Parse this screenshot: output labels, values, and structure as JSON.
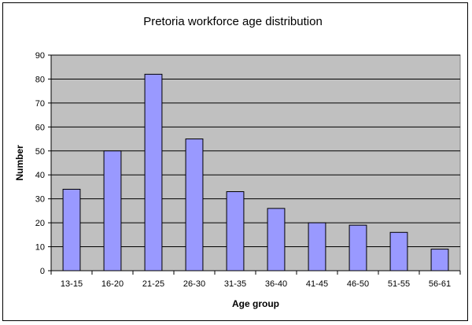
{
  "chart_data": {
    "type": "bar",
    "title": "Pretoria workforce age distribution",
    "xlabel": "Age group",
    "ylabel": "Number",
    "categories": [
      "13-15",
      "16-20",
      "21-25",
      "26-30",
      "31-35",
      "36-40",
      "41-45",
      "46-50",
      "51-55",
      "56-61"
    ],
    "values": [
      34,
      50,
      82,
      55,
      33,
      26,
      20,
      19,
      16,
      9
    ],
    "ylim": [
      0,
      90
    ],
    "yticks": [
      "0",
      "10",
      "20",
      "30",
      "40",
      "50",
      "60",
      "70",
      "80",
      "90"
    ],
    "grid": true,
    "legend": "none",
    "colors": {
      "bar_fill": "#9999ff",
      "bar_stroke": "#000000",
      "plot_background": "#c0c0c0",
      "gridline": "#000000"
    }
  }
}
